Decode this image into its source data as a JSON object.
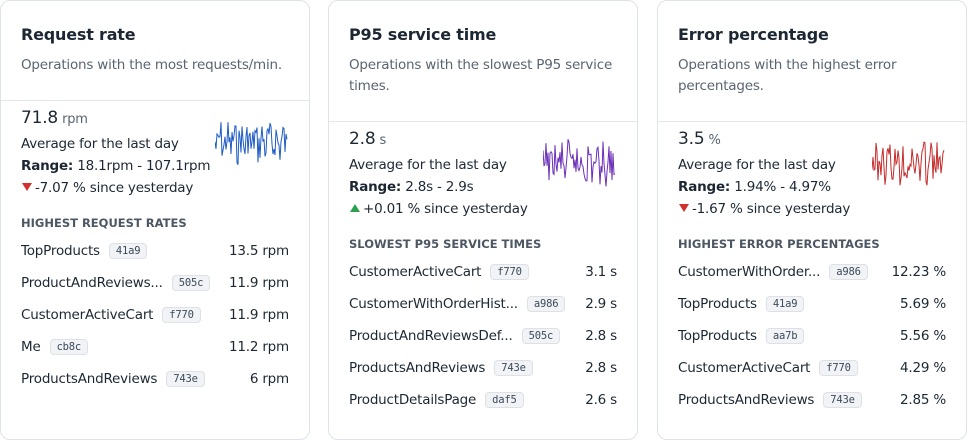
{
  "cards": [
    {
      "title": "Request rate",
      "subtitle": "Operations with the most requests/min.",
      "value": "71.8",
      "unit": "rpm",
      "caption": "Average for the last day",
      "range_label": "Range:",
      "range": "18.1rpm - 107.1rpm",
      "change": "-7.07 % since yesterday",
      "section": "HIGHEST REQUEST RATES",
      "rows": [
        {
          "name": "TopProducts",
          "hash": "41a9",
          "value": "13.5 rpm"
        },
        {
          "name": "ProductAndReviews...",
          "hash": "505c",
          "value": "11.9 rpm"
        },
        {
          "name": "CustomerActiveCart",
          "hash": "f770",
          "value": "11.9 rpm"
        },
        {
          "name": "Me",
          "hash": "cb8c",
          "value": "11.2 rpm"
        },
        {
          "name": "ProductsAndReviews",
          "hash": "743e",
          "value": "6 rpm"
        }
      ]
    },
    {
      "title": "P95 service time",
      "subtitle": "Operations with the slowest P95 service times.",
      "value": "2.8",
      "unit": "s",
      "caption": "Average for the last day",
      "range_label": "Range:",
      "range": "2.8s - 2.9s",
      "change": "+0.01 % since yesterday",
      "section": "SLOWEST P95 SERVICE TIMES",
      "rows": [
        {
          "name": "CustomerActiveCart",
          "hash": "f770",
          "value": "3.1 s"
        },
        {
          "name": "CustomerWithOrderHist...",
          "hash": "a986",
          "value": "2.9 s"
        },
        {
          "name": "ProductAndReviewsDef...",
          "hash": "505c",
          "value": "2.8 s"
        },
        {
          "name": "ProductsAndReviews",
          "hash": "743e",
          "value": "2.8 s"
        },
        {
          "name": "ProductDetailsPage",
          "hash": "daf5",
          "value": "2.6 s"
        }
      ]
    },
    {
      "title": "Error percentage",
      "subtitle": "Operations with the highest error percentages.",
      "value": "3.5",
      "unit": "%",
      "caption": "Average for the last day",
      "range_label": "Range:",
      "range": "1.94% - 4.97%",
      "change": "-1.67 % since yesterday",
      "section": "HIGHEST ERROR PERCENTAGES",
      "rows": [
        {
          "name": "CustomerWithOrder...",
          "hash": "a986",
          "value": "12.23 %"
        },
        {
          "name": "TopProducts",
          "hash": "41a9",
          "value": "5.69 %"
        },
        {
          "name": "TopProducts",
          "hash": "aa7b",
          "value": "5.56 %"
        },
        {
          "name": "CustomerActiveCart",
          "hash": "f770",
          "value": "4.29 %"
        },
        {
          "name": "ProductsAndReviews",
          "hash": "743e",
          "value": "2.85 %"
        }
      ]
    }
  ]
}
